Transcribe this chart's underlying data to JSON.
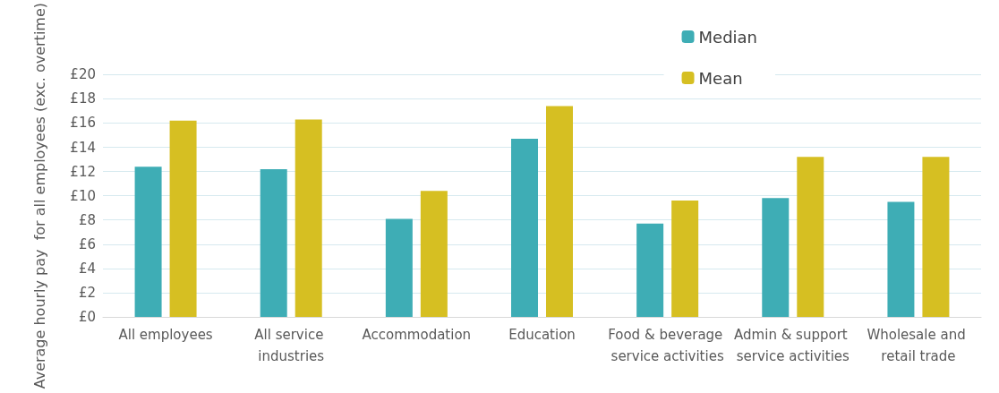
{
  "chart_data": {
    "type": "bar",
    "ylabel": "Average hourly pay  for all employees (exc. overtime)",
    "categories": [
      "All employees",
      "All service industries",
      "Accommodation",
      "Education",
      "Food & beverage service activities",
      "Admin & support service activities",
      "Wholesale and retail trade"
    ],
    "series": [
      {
        "name": "Median",
        "color": "#3eadb5",
        "values": [
          12.4,
          12.2,
          8.1,
          14.7,
          7.7,
          9.8,
          9.5
        ]
      },
      {
        "name": "Mean",
        "color": "#d6bf22",
        "values": [
          16.2,
          16.3,
          10.4,
          17.4,
          9.6,
          13.2,
          13.2
        ]
      }
    ],
    "ylim": [
      0,
      20
    ],
    "yticks": [
      {
        "value": 0,
        "label": "£0"
      },
      {
        "value": 2,
        "label": "£2"
      },
      {
        "value": 4,
        "label": "£4"
      },
      {
        "value": 6,
        "label": "£6"
      },
      {
        "value": 8,
        "label": "£8"
      },
      {
        "value": 10,
        "label": "£10"
      },
      {
        "value": 12,
        "label": "£12"
      },
      {
        "value": 14,
        "label": "£14"
      },
      {
        "value": 16,
        "label": "£16"
      },
      {
        "value": 18,
        "label": "£18"
      },
      {
        "value": 20,
        "label": "£20"
      }
    ],
    "grid": "y",
    "legend": "top right"
  }
}
